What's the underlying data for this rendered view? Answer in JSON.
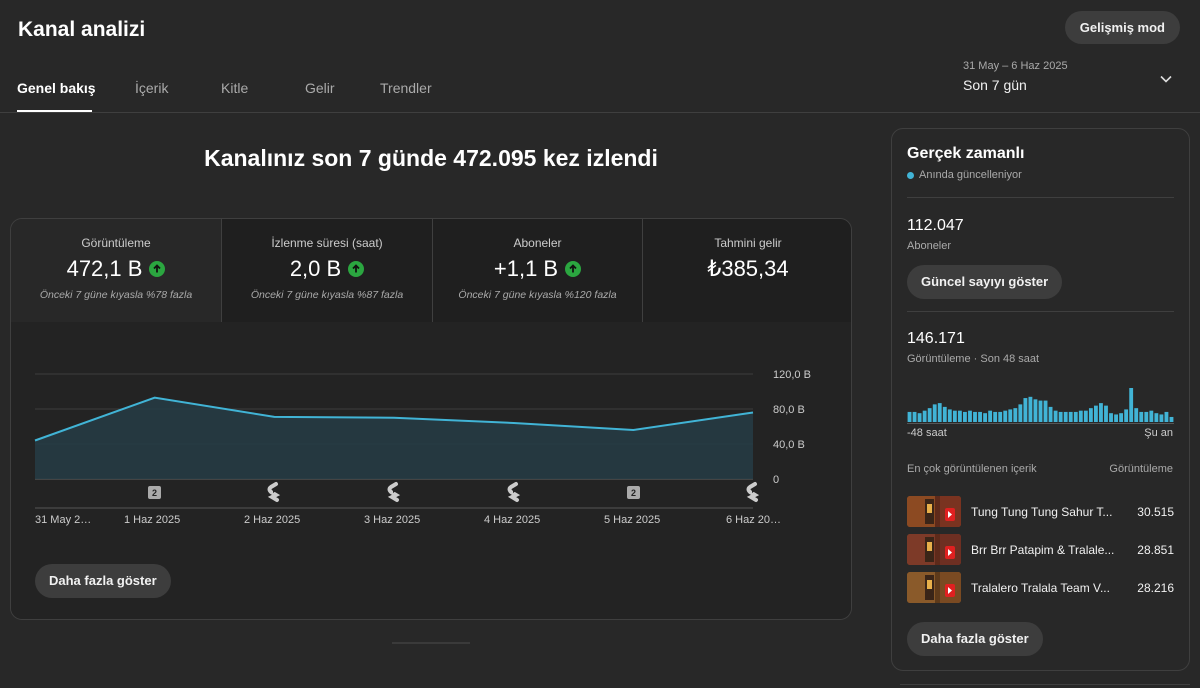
{
  "page": {
    "title": "Kanal analizi",
    "advanced_mode": "Gelişmiş mod"
  },
  "tabs": [
    {
      "label": "Genel bakış",
      "active": true
    },
    {
      "label": "İçerik",
      "active": false
    },
    {
      "label": "Kitle",
      "active": false
    },
    {
      "label": "Gelir",
      "active": false
    },
    {
      "label": "Trendler",
      "active": false
    }
  ],
  "date_range": {
    "range": "31 May – 6 Haz 2025",
    "preset": "Son 7 gün",
    "icon": "chevron-down-icon"
  },
  "overview": {
    "headline": "Kanalınız son 7 günde 472.095 kez izlendi",
    "metrics": [
      {
        "label": "Görüntüleme",
        "value": "472,1 B",
        "trend": "up",
        "note": "Önceki 7 güne kıyasla %78 fazla"
      },
      {
        "label": "İzlenme süresi (saat)",
        "value": "2,0 B",
        "trend": "up",
        "note": "Önceki 7 güne kıyasla %87 fazla"
      },
      {
        "label": "Aboneler",
        "value": "+1,1 B",
        "trend": "up",
        "note": "Önceki 7 güne kıyasla %120 fazla"
      },
      {
        "label": "Tahmini gelir",
        "value": "₺385,34",
        "trend": "none",
        "note": ""
      }
    ],
    "show_more": "Daha fazla göster"
  },
  "chart_data": {
    "type": "area",
    "x": [
      "31 May 2…",
      "1 Haz 2025",
      "2 Haz 2025",
      "3 Haz 2025",
      "4 Haz 2025",
      "5 Haz 2025",
      "6 Haz 20…"
    ],
    "values": [
      44000,
      93000,
      71000,
      70000,
      64000,
      56000,
      76000
    ],
    "ylim": [
      0,
      120000
    ],
    "yticks": [
      0,
      40000,
      80000,
      120000
    ],
    "ytick_labels": [
      "0",
      "40,0 B",
      "80,0 B",
      "120,0 B"
    ],
    "markers": [
      "2",
      "shorts",
      "shorts",
      "shorts",
      "2",
      "shorts"
    ],
    "grid": true,
    "color": "#41b4d6"
  },
  "realtime": {
    "title": "Gerçek zamanlı",
    "live_label": "Anında güncelleniyor",
    "subscribers_value": "112.047",
    "subscribers_label": "Aboneler",
    "show_count_button": "Güncel sayıyı göster",
    "views_value": "146.171",
    "views_label": "Görüntüleme · Son 48 saat",
    "hourly_views": [
      8,
      8,
      7,
      9,
      11,
      14,
      15,
      12,
      10,
      9,
      9,
      8,
      9,
      8,
      8,
      7,
      9,
      8,
      8,
      9,
      10,
      11,
      14,
      19,
      20,
      18,
      17,
      17,
      12,
      9,
      8,
      8,
      8,
      8,
      9,
      9,
      11,
      13,
      15,
      13,
      7,
      6,
      7,
      10,
      27,
      11,
      8,
      8,
      9,
      7,
      6,
      8,
      4
    ],
    "axis_start": "-48 saat",
    "axis_end": "Şu an",
    "top_content_header": "En çok görüntülenen içerik",
    "top_content_metric": "Görüntüleme",
    "top_content": [
      {
        "title": "Tung Tung Tung Sahur T...",
        "views": "30.515"
      },
      {
        "title": "Brr Brr Patapim & Tralale...",
        "views": "28.851"
      },
      {
        "title": "Tralalero Tralala Team V...",
        "views": "28.216"
      }
    ],
    "show_more": "Daha fazla göster"
  }
}
